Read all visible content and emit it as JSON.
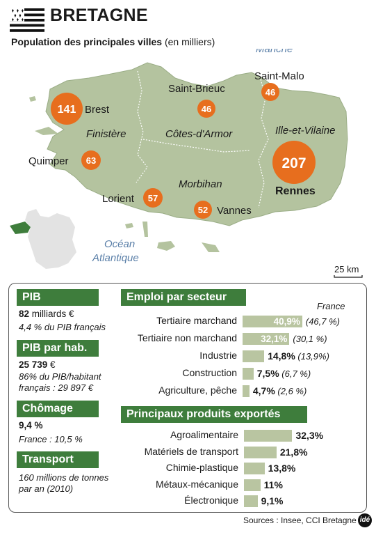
{
  "header": {
    "title": "BRETAGNE",
    "subtitle_bold": "Population des principales villes",
    "subtitle_rest": " (en milliers)"
  },
  "map": {
    "seas": {
      "manche": "Manche",
      "ocean_1": "Océan",
      "ocean_2": "Atlantique"
    },
    "departments": [
      "Finistère",
      "Côtes-d'Armor",
      "Morbihan",
      "Ille-et-Vilaine"
    ],
    "cities": [
      {
        "name": "Brest",
        "population": "141"
      },
      {
        "name": "Saint-Brieuc",
        "population": "46"
      },
      {
        "name": "Saint-Malo",
        "population": "46"
      },
      {
        "name": "Quimper",
        "population": "63"
      },
      {
        "name": "Rennes",
        "population": "207"
      },
      {
        "name": "Lorient",
        "population": "57"
      },
      {
        "name": "Vannes",
        "population": "52"
      }
    ],
    "scale": "25 km",
    "colors": {
      "land": "#b4c39f",
      "sea": "#ffffff",
      "circle": "#e76e1e",
      "inset_france": "#e3e3e3",
      "inset_region": "#3e7d3c"
    }
  },
  "left": {
    "pib": {
      "title": "PIB",
      "value": "82",
      "unit": " milliards €",
      "note": "4,4 % du PIB français"
    },
    "pib_hab": {
      "title": "PIB par hab.",
      "value": "25 739",
      "unit": " €",
      "note1": "86% du PIB/habitant",
      "note2": "français : 29 897 €"
    },
    "chomage": {
      "title": "Chômage",
      "value": "9,4 %",
      "note": "France : 10,5 %"
    },
    "transport": {
      "title": "Transport",
      "note1": "160 millions de tonnes",
      "note2": "par an (2010)"
    }
  },
  "chart_data": [
    {
      "type": "bar",
      "title": "Emploi par secteur",
      "legend_note": "France",
      "categories": [
        "Tertiaire marchand",
        "Tertiaire non marchand",
        "Industrie",
        "Construction",
        "Agriculture, pêche"
      ],
      "values": [
        40.9,
        32.1,
        14.8,
        7.5,
        4.7
      ],
      "value_labels": [
        "40,9%",
        "32,1%",
        "14,8%",
        "7,5%",
        "4,7%"
      ],
      "france_labels": [
        "(46,7 %)",
        "(30,1 %)",
        "(13,9%)",
        "(6,7 %)",
        "(2,6 %)"
      ],
      "unit": "%"
    },
    {
      "type": "bar",
      "title": "Principaux produits exportés",
      "categories": [
        "Agroalimentaire",
        "Matériels de transport",
        "Chimie-plastique",
        "Métaux-mécanique",
        "Électronique"
      ],
      "values": [
        32.3,
        21.8,
        13.8,
        11,
        9.1
      ],
      "value_labels": [
        "32,3%",
        "21,8%",
        "13,8%",
        "11%",
        "9,1%"
      ],
      "unit": "%"
    }
  ],
  "footer": {
    "sources": "Sources : Insee, CCI Bretagne",
    "logo": "idé"
  }
}
